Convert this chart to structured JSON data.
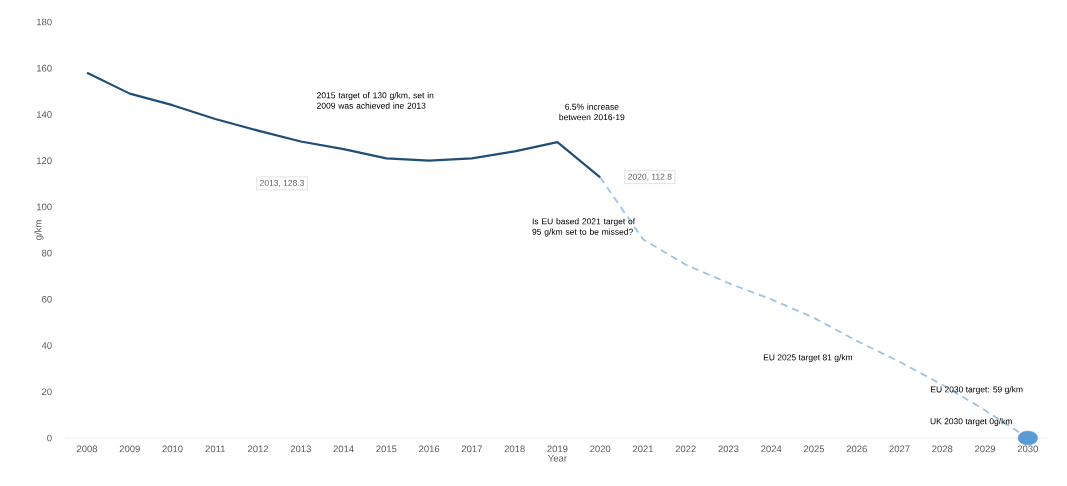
{
  "chart_data": {
    "type": "line",
    "categories": [
      "2008",
      "2009",
      "2010",
      "2011",
      "2012",
      "2013",
      "2014",
      "2015",
      "2016",
      "2017",
      "2018",
      "2019",
      "2020",
      "2021",
      "2022",
      "2023",
      "2024",
      "2025",
      "2026",
      "2027",
      "2028",
      "2029",
      "2030"
    ],
    "series": [
      {
        "color": "#1f4e79",
        "line_style": "solid",
        "values": [
          158,
          149,
          144,
          138,
          133,
          128.3,
          125,
          121,
          120,
          121,
          124,
          128,
          112.8,
          null,
          null,
          null,
          null,
          null,
          null,
          null,
          null,
          null,
          null
        ]
      },
      {
        "color": "#9dc3e6",
        "line_style": "dashed",
        "values": [
          null,
          null,
          null,
          null,
          null,
          null,
          null,
          null,
          null,
          null,
          null,
          null,
          112.8,
          86,
          75,
          67,
          60,
          52,
          42,
          33,
          23,
          12,
          0
        ]
      },
      {
        "type": "scatter",
        "color": "#5b9bd5",
        "marker": "circle",
        "values": [
          null,
          null,
          null,
          null,
          null,
          null,
          null,
          null,
          null,
          null,
          null,
          null,
          null,
          null,
          null,
          null,
          null,
          null,
          null,
          null,
          null,
          null,
          0
        ]
      }
    ],
    "xlabel": "Year",
    "ylabel": "g/km",
    "ylim": [
      0,
      180
    ],
    "yticks": [
      0,
      20,
      40,
      60,
      80,
      100,
      120,
      140,
      160,
      180
    ],
    "grid": false,
    "annotations": [
      "2013, 128.3",
      "2015 target of 130 g/km, set in 2009 was achieved ine 2013",
      "6.5% increase between 2016-19",
      "2020, 112.8",
      "Is EU based 2021 target of 95 g/km set to be missed?",
      "EU 2025 target 81 g/km",
      "EU 2030 target: 59 g/km",
      {
        "text": "UK 2030 target 0g/km",
        "x": "2030",
        "y": 0
      }
    ]
  }
}
